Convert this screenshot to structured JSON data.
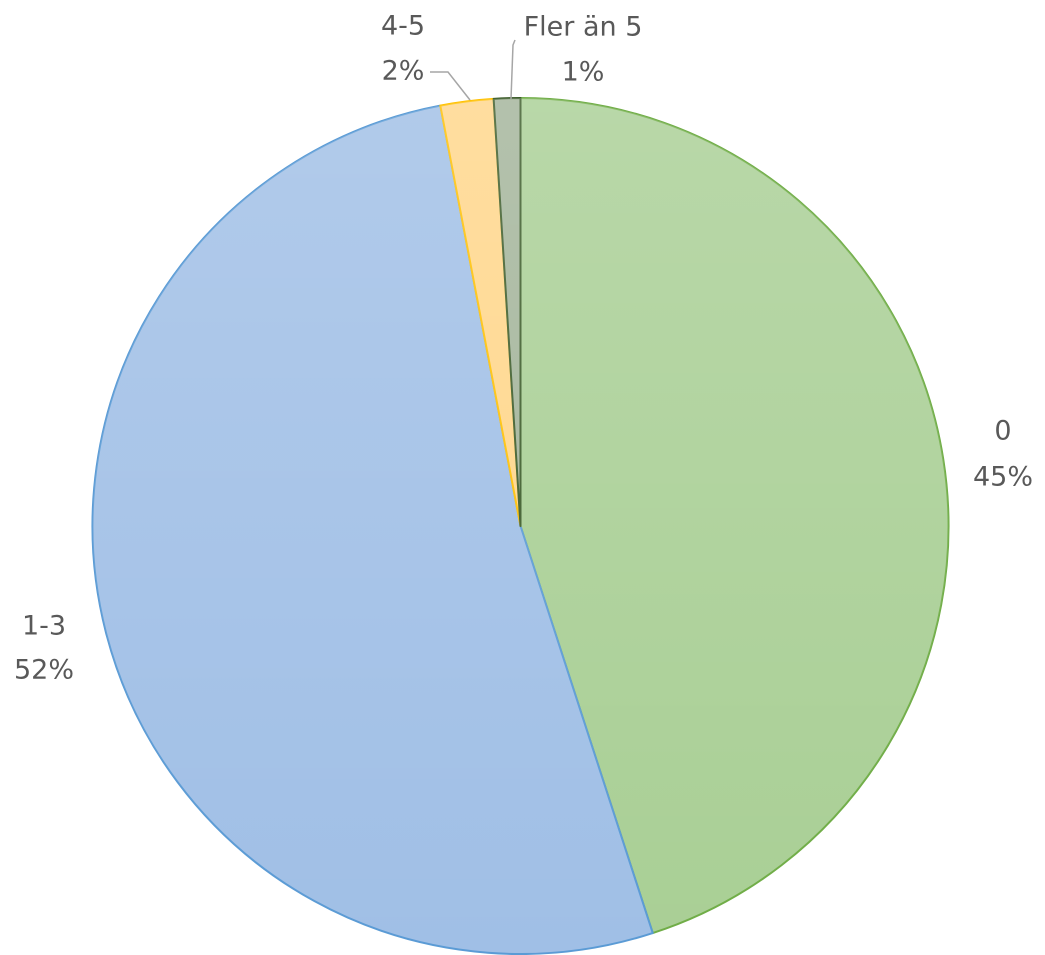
{
  "chart_data": {
    "type": "pie",
    "categories": [
      "0",
      "1-3",
      "4-5",
      "Fler än 5"
    ],
    "values": [
      45,
      52,
      2,
      1
    ],
    "value_labels": [
      "45%",
      "52%",
      "2%",
      "1%"
    ],
    "colors": [
      "#a9cf95",
      "#a0bfe6",
      "#ffd68a",
      "#a3b49a"
    ],
    "edge_colors": [
      "#70ad47",
      "#5b9bd5",
      "#ffc000",
      "#3a5a28"
    ]
  }
}
